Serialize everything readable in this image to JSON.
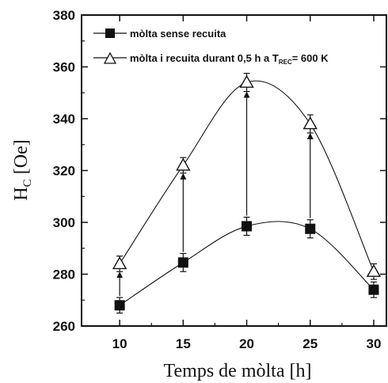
{
  "chart_data": {
    "type": "line",
    "xlabel": "Temps de mòlta [h]",
    "ylabel_main": "H",
    "ylabel_sub": "C",
    "ylabel_unit": " [Oe]",
    "xlim": [
      7,
      31
    ],
    "ylim": [
      260,
      380
    ],
    "xticks": [
      10,
      15,
      20,
      25,
      30
    ],
    "yticks": [
      260,
      280,
      300,
      320,
      340,
      360,
      380
    ],
    "series": [
      {
        "name": "mòlta sense recuita",
        "marker": "filled-square",
        "x": [
          10,
          15,
          20,
          25,
          30
        ],
        "y": [
          268,
          284.5,
          298.5,
          297.5,
          274
        ],
        "err": [
          3,
          3.5,
          3.5,
          3.5,
          3
        ]
      },
      {
        "name": "mòlta i recuita durant 0,5 h a T",
        "name_sub": "REC",
        "name_suffix": "= 600 K",
        "marker": "open-triangle",
        "x": [
          10,
          15,
          20,
          25,
          30
        ],
        "y": [
          284,
          322,
          354,
          338,
          281
        ],
        "err": [
          3,
          3,
          3.5,
          3.5,
          3
        ]
      }
    ],
    "annotations": "arrows from series 1 to series 2 at each x",
    "legend_position": "top-left"
  },
  "colors": {
    "ink": "#111111",
    "background": "#ffffff"
  }
}
